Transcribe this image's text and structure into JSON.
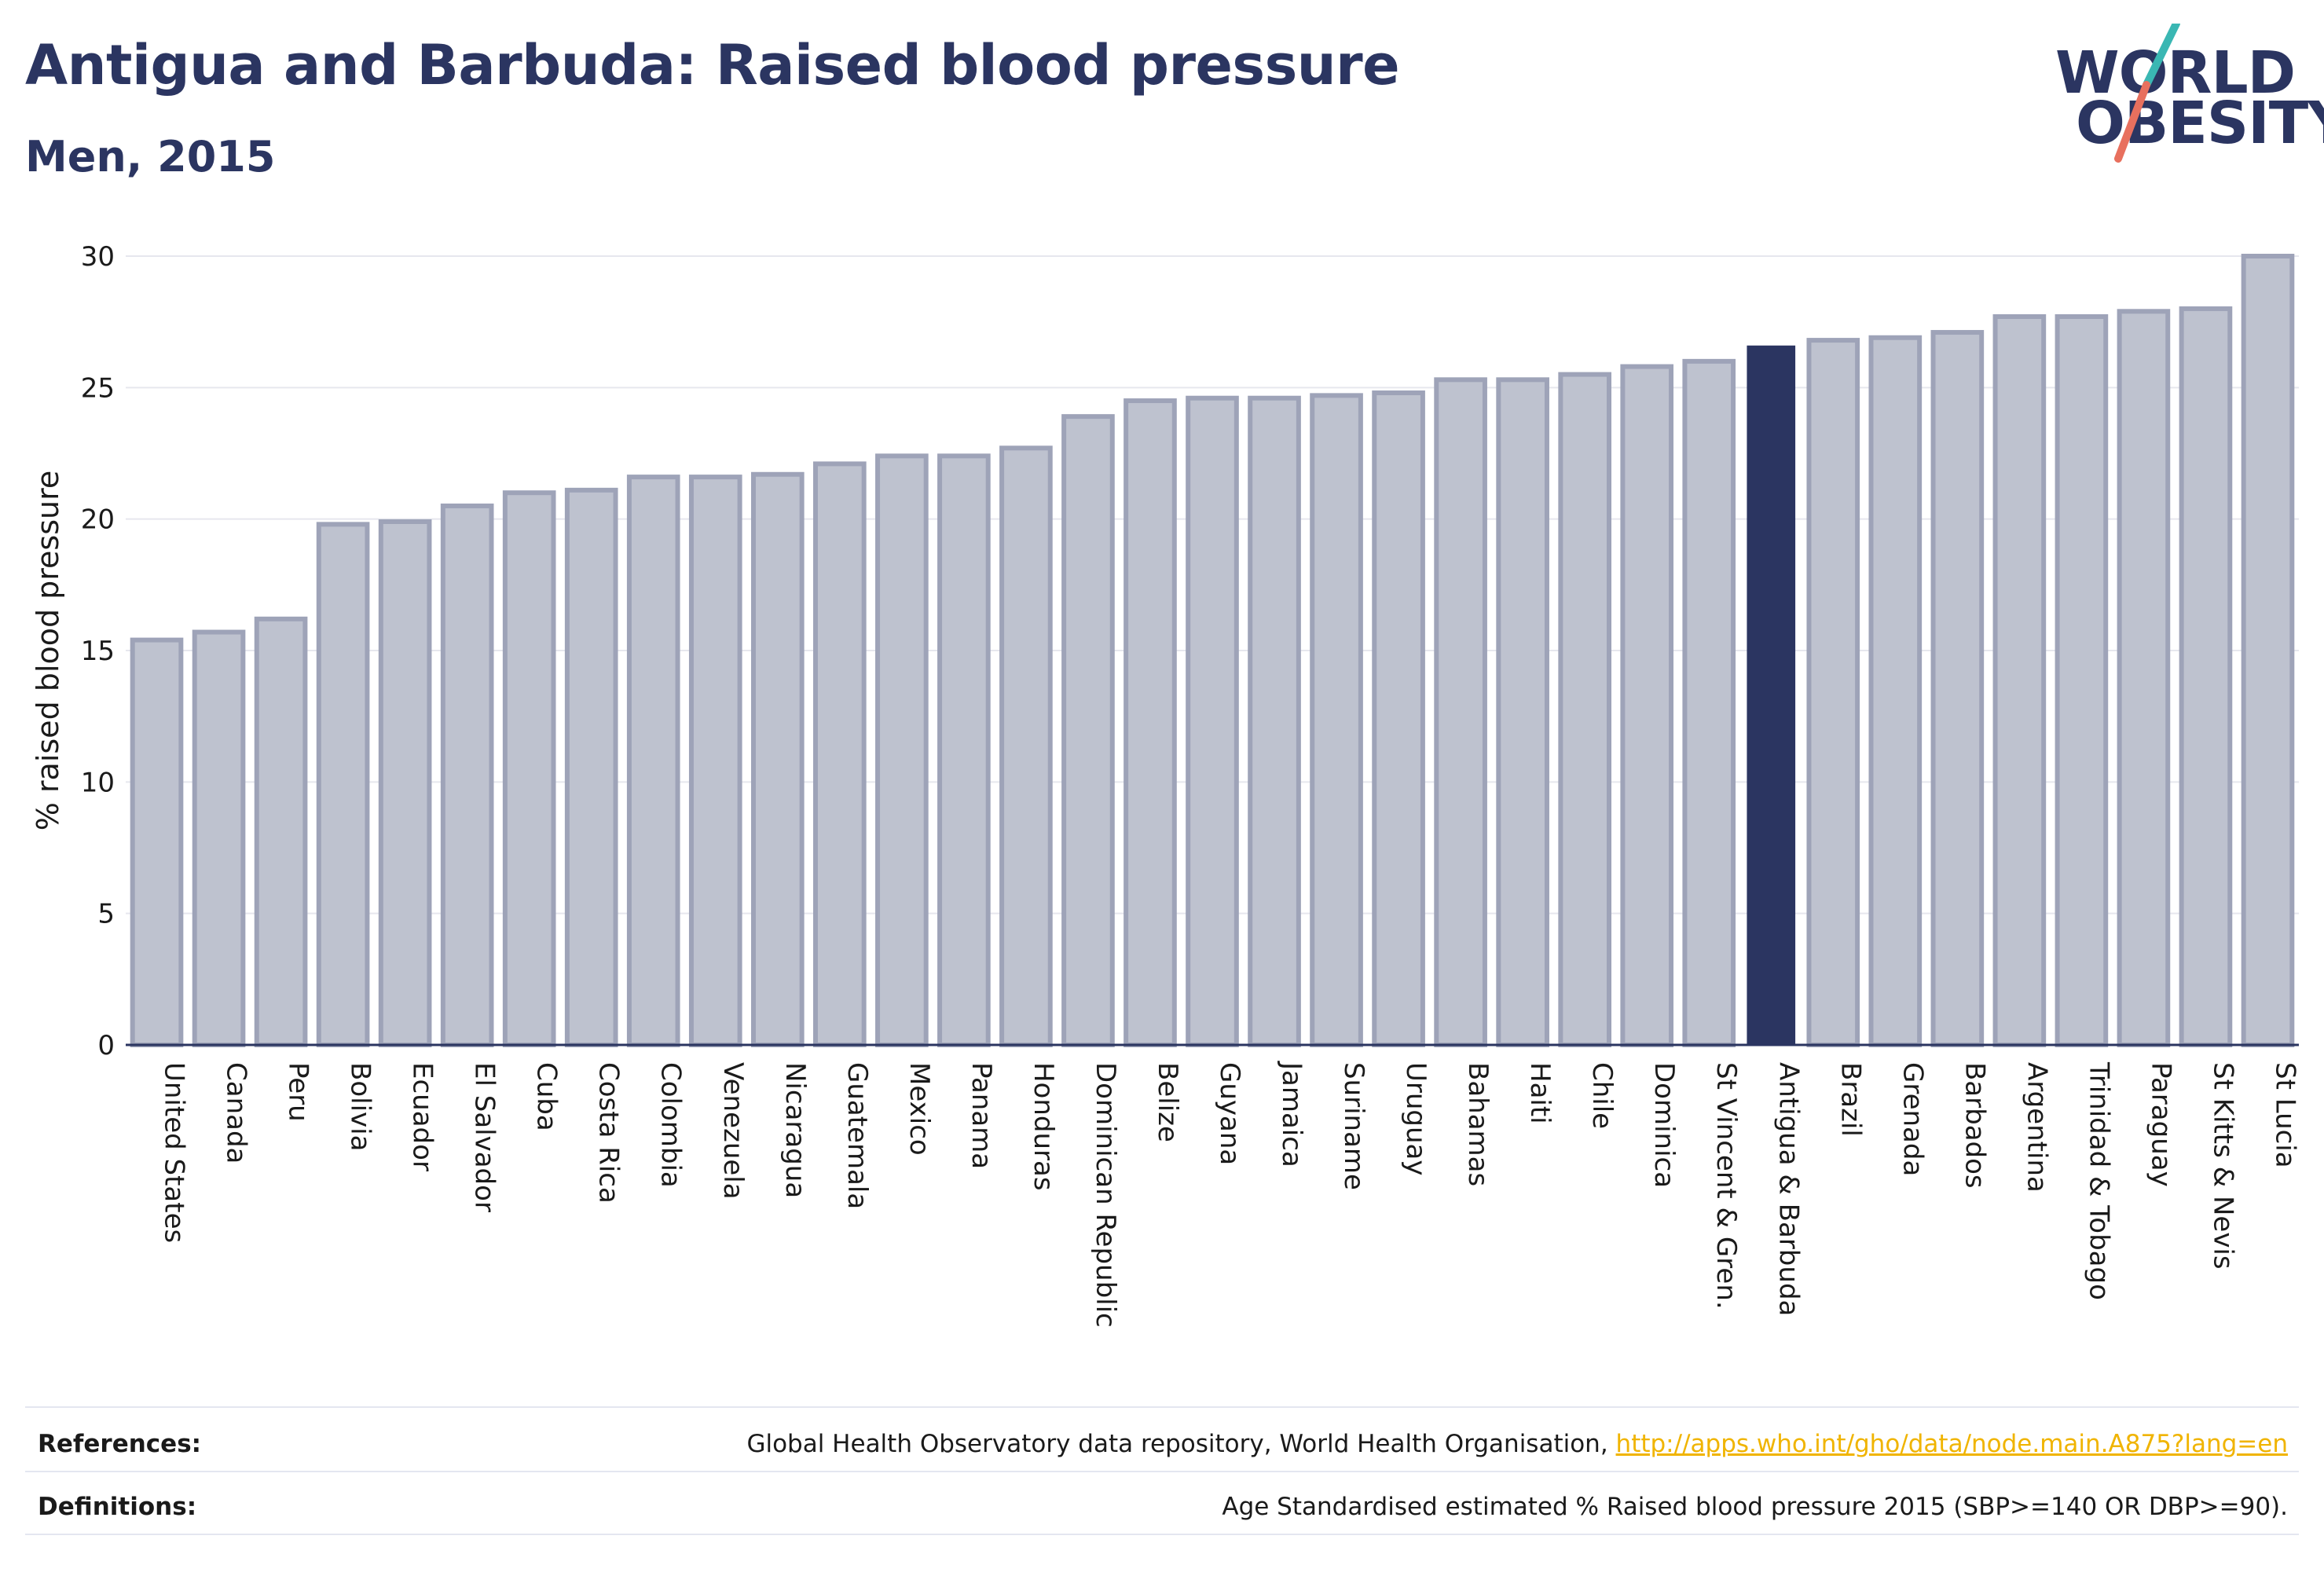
{
  "header": {
    "title": "Antigua and Barbuda: Raised blood pressure",
    "subtitle": "Men, 2015"
  },
  "logo": {
    "line1": "WORLD",
    "line2": "OBESITY",
    "slash_colors": [
      "#3ab7b3",
      "#e8705e"
    ]
  },
  "colors": {
    "bar_default": "#bec2cf",
    "bar_default_edge": "#9ea3b8",
    "bar_highlight": "#2b3561",
    "grid": "#e6e7ee",
    "axis": "#2b3561",
    "link": "#f0b400"
  },
  "chart_data": {
    "type": "bar",
    "ylabel": "% raised blood pressure",
    "ylim": [
      0,
      30
    ],
    "yticks": [
      0,
      5,
      10,
      15,
      20,
      25,
      30
    ],
    "grid": true,
    "highlight": "Antigua & Barbuda",
    "categories": [
      "United States",
      "Canada",
      "Peru",
      "Bolivia",
      "Ecuador",
      "El Salvador",
      "Cuba",
      "Costa Rica",
      "Colombia",
      "Venezuela",
      "Nicaragua",
      "Guatemala",
      "Mexico",
      "Panama",
      "Honduras",
      "Dominican Republic",
      "Belize",
      "Guyana",
      "Jamaica",
      "Suriname",
      "Uruguay",
      "Bahamas",
      "Haiti",
      "Chile",
      "Dominica",
      "St Vincent & Gren.",
      "Antigua & Barbuda",
      "Brazil",
      "Grenada",
      "Barbados",
      "Argentina",
      "Trinidad & Tobago",
      "Paraguay",
      "St Kitts & Nevis",
      "St Lucia"
    ],
    "values": [
      15.4,
      15.7,
      16.2,
      19.8,
      19.9,
      20.5,
      21.0,
      21.1,
      21.6,
      21.6,
      21.7,
      22.1,
      22.4,
      22.4,
      22.7,
      23.9,
      24.5,
      24.6,
      24.6,
      24.7,
      24.8,
      25.3,
      25.3,
      25.5,
      25.8,
      26.0,
      26.6,
      26.8,
      26.9,
      27.1,
      27.7,
      27.7,
      27.9,
      28.0,
      30.0
    ]
  },
  "footer": {
    "references_label": "References:",
    "references_text": "Global Health Observatory data repository, World Health Organisation, ",
    "references_link": "http://apps.who.int/gho/data/node.main.A875?lang=en",
    "definitions_label": "Definitions:",
    "definitions_text": "Age Standardised estimated % Raised blood pressure 2015 (SBP>=140 OR DBP>=90)."
  }
}
